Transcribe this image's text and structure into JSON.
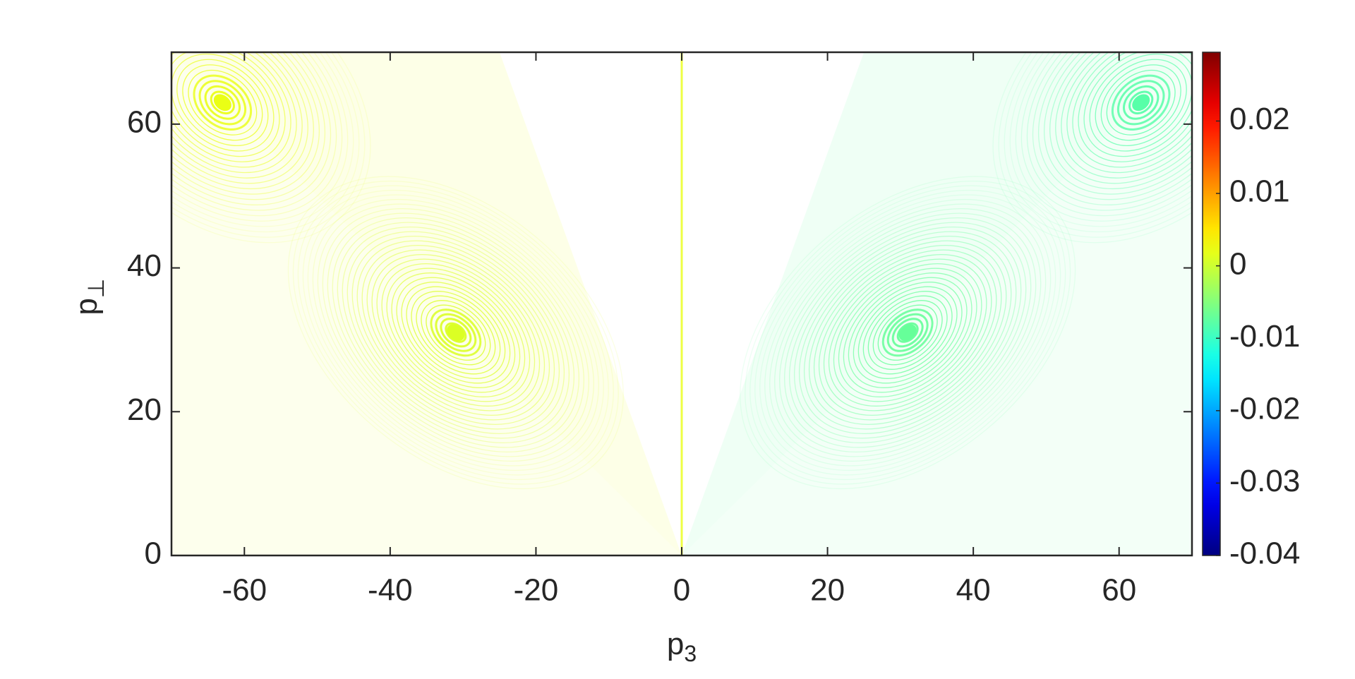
{
  "chart_data": {
    "type": "heatmap",
    "x_label": {
      "base": "p",
      "sub": "3"
    },
    "y_label": {
      "base": "p",
      "sub": "⊥"
    },
    "xlim": [
      -70,
      70
    ],
    "xticks": [
      -60,
      -40,
      -20,
      0,
      20,
      40,
      60
    ],
    "ylim": [
      0,
      70
    ],
    "yticks": [
      0,
      20,
      40,
      60
    ],
    "colormap": "jet",
    "clim": [
      -0.04,
      0.0295
    ],
    "cticks": [
      -0.04,
      -0.03,
      -0.02,
      -0.01,
      0,
      0.01,
      0.02
    ],
    "peaks": [
      {
        "x": -63,
        "y": 63,
        "value": 0.002
      },
      {
        "x": 63,
        "y": 63,
        "value": -0.008
      },
      {
        "x": -31,
        "y": 31,
        "value": 0.001
      },
      {
        "x": 31,
        "y": 31,
        "value": -0.007
      }
    ]
  }
}
